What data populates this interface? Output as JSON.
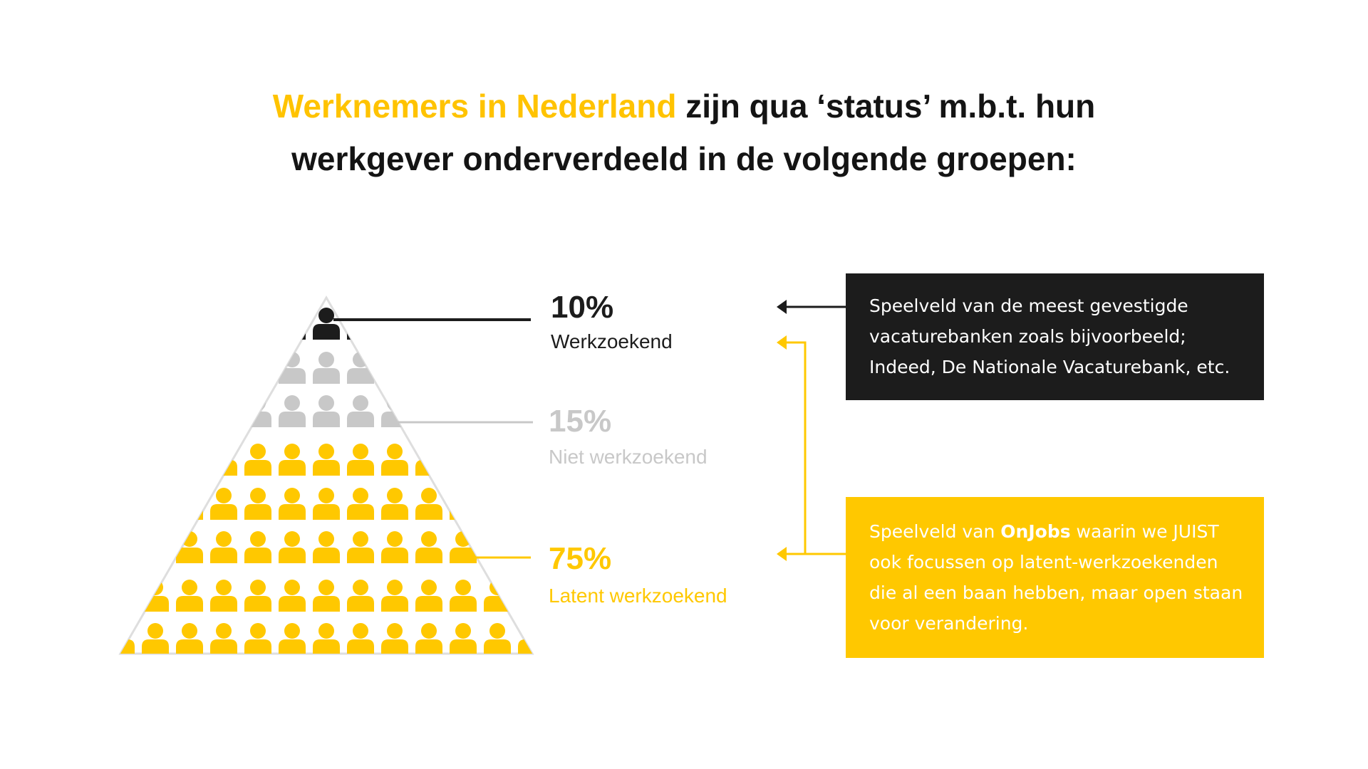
{
  "title": {
    "highlight": "Werknemers in Nederland",
    "rest": "zijn qua ‘status’ m.b.t. hun",
    "line2": "werkgever onderverdeeld in de volgende groepen:"
  },
  "groups": [
    {
      "percent": "10%",
      "label": "Werkzoekend"
    },
    {
      "percent": "15%",
      "label": "Niet werkzoekend"
    },
    {
      "percent": "75%",
      "label": "Latent werkzoekend"
    }
  ],
  "boxes": [
    {
      "lines": [
        "Speelveld van de meest gevestigde",
        "vacaturebanken zoals bijvoorbeeld;",
        "Indeed, De Nationale Vacaturebank, etc."
      ]
    },
    {
      "first": {
        "before": "Speelveld van ",
        "bold": "OnJobs",
        "after": " waarin we JUIST"
      },
      "lines": [
        "ook focussen op latent-werkzoekenden",
        "die al een baan hebben, maar open staan",
        "voor verandering."
      ]
    }
  ]
}
